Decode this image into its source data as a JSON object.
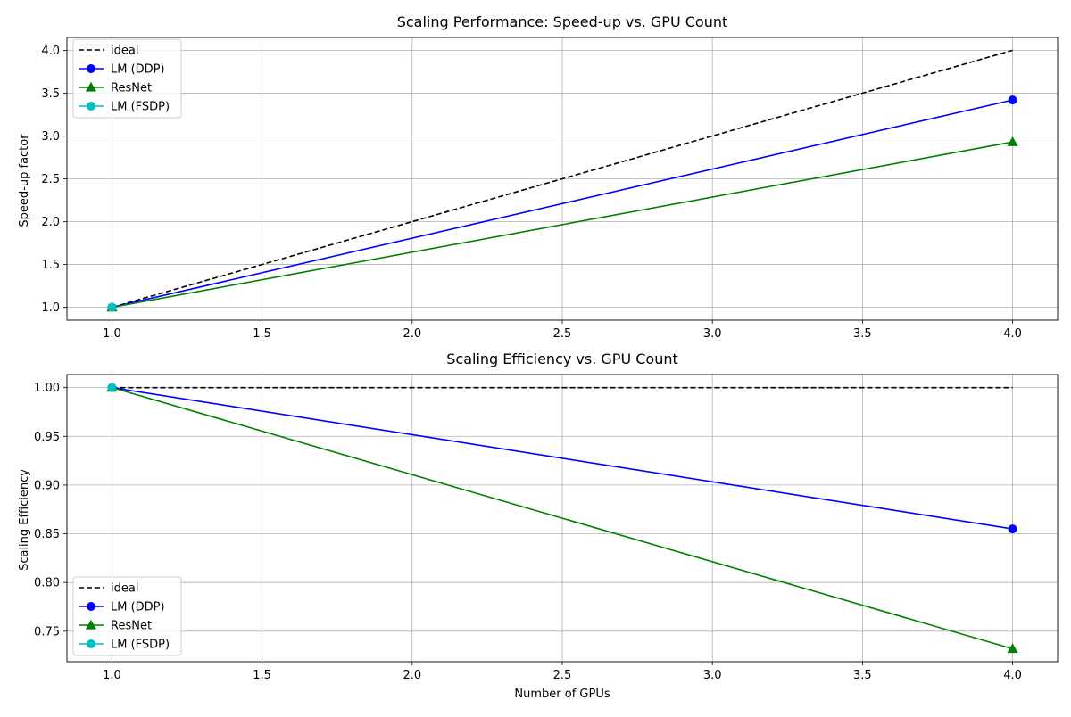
{
  "chart_data": [
    {
      "type": "line",
      "title": "Scaling Performance: Speed-up vs. GPU Count",
      "xlabel": "",
      "ylabel": "Speed-up factor",
      "xlim": [
        0.85,
        4.15
      ],
      "ylim": [
        0.85,
        4.15
      ],
      "xticks": [
        1.0,
        1.5,
        2.0,
        2.5,
        3.0,
        3.5,
        4.0
      ],
      "yticks": [
        1.0,
        1.5,
        2.0,
        2.5,
        3.0,
        3.5,
        4.0
      ],
      "tick_decimals": 1,
      "grid": true,
      "legend_position": "upper-left",
      "series": [
        {
          "name": "ideal",
          "x": [
            1,
            4
          ],
          "values": [
            1.0,
            4.0
          ],
          "color": "#000000",
          "dash": true,
          "marker": "none"
        },
        {
          "name": "LM (DDP)",
          "x": [
            1,
            4
          ],
          "values": [
            1.0,
            3.42
          ],
          "color": "#0000ff",
          "dash": false,
          "marker": "circle"
        },
        {
          "name": "ResNet",
          "x": [
            1,
            4
          ],
          "values": [
            1.0,
            2.93
          ],
          "color": "#008000",
          "dash": false,
          "marker": "triangle"
        },
        {
          "name": "LM (FSDP)",
          "x": [
            1
          ],
          "values": [
            1.0
          ],
          "color": "#00bfbf",
          "dash": false,
          "marker": "circle"
        }
      ]
    },
    {
      "type": "line",
      "title": "Scaling Efficiency vs. GPU Count",
      "xlabel": "Number of GPUs",
      "ylabel": "Scaling Efficiency",
      "xlim": [
        0.85,
        4.15
      ],
      "ylim": [
        0.7187,
        1.0134
      ],
      "xticks": [
        1.0,
        1.5,
        2.0,
        2.5,
        3.0,
        3.5,
        4.0
      ],
      "yticks": [
        0.75,
        0.8,
        0.85,
        0.9,
        0.95,
        1.0
      ],
      "tick_decimals": 2,
      "grid": true,
      "legend_position": "lower-left",
      "series": [
        {
          "name": "ideal",
          "x": [
            1,
            4
          ],
          "values": [
            1.0,
            1.0
          ],
          "color": "#000000",
          "dash": true,
          "marker": "none"
        },
        {
          "name": "LM (DDP)",
          "x": [
            1,
            4
          ],
          "values": [
            1.0,
            0.855
          ],
          "color": "#0000ff",
          "dash": false,
          "marker": "circle"
        },
        {
          "name": "ResNet",
          "x": [
            1,
            4
          ],
          "values": [
            1.0,
            0.732
          ],
          "color": "#008000",
          "dash": false,
          "marker": "triangle"
        },
        {
          "name": "LM (FSDP)",
          "x": [
            1
          ],
          "values": [
            1.0
          ],
          "color": "#00bfbf",
          "dash": false,
          "marker": "circle"
        }
      ]
    }
  ]
}
